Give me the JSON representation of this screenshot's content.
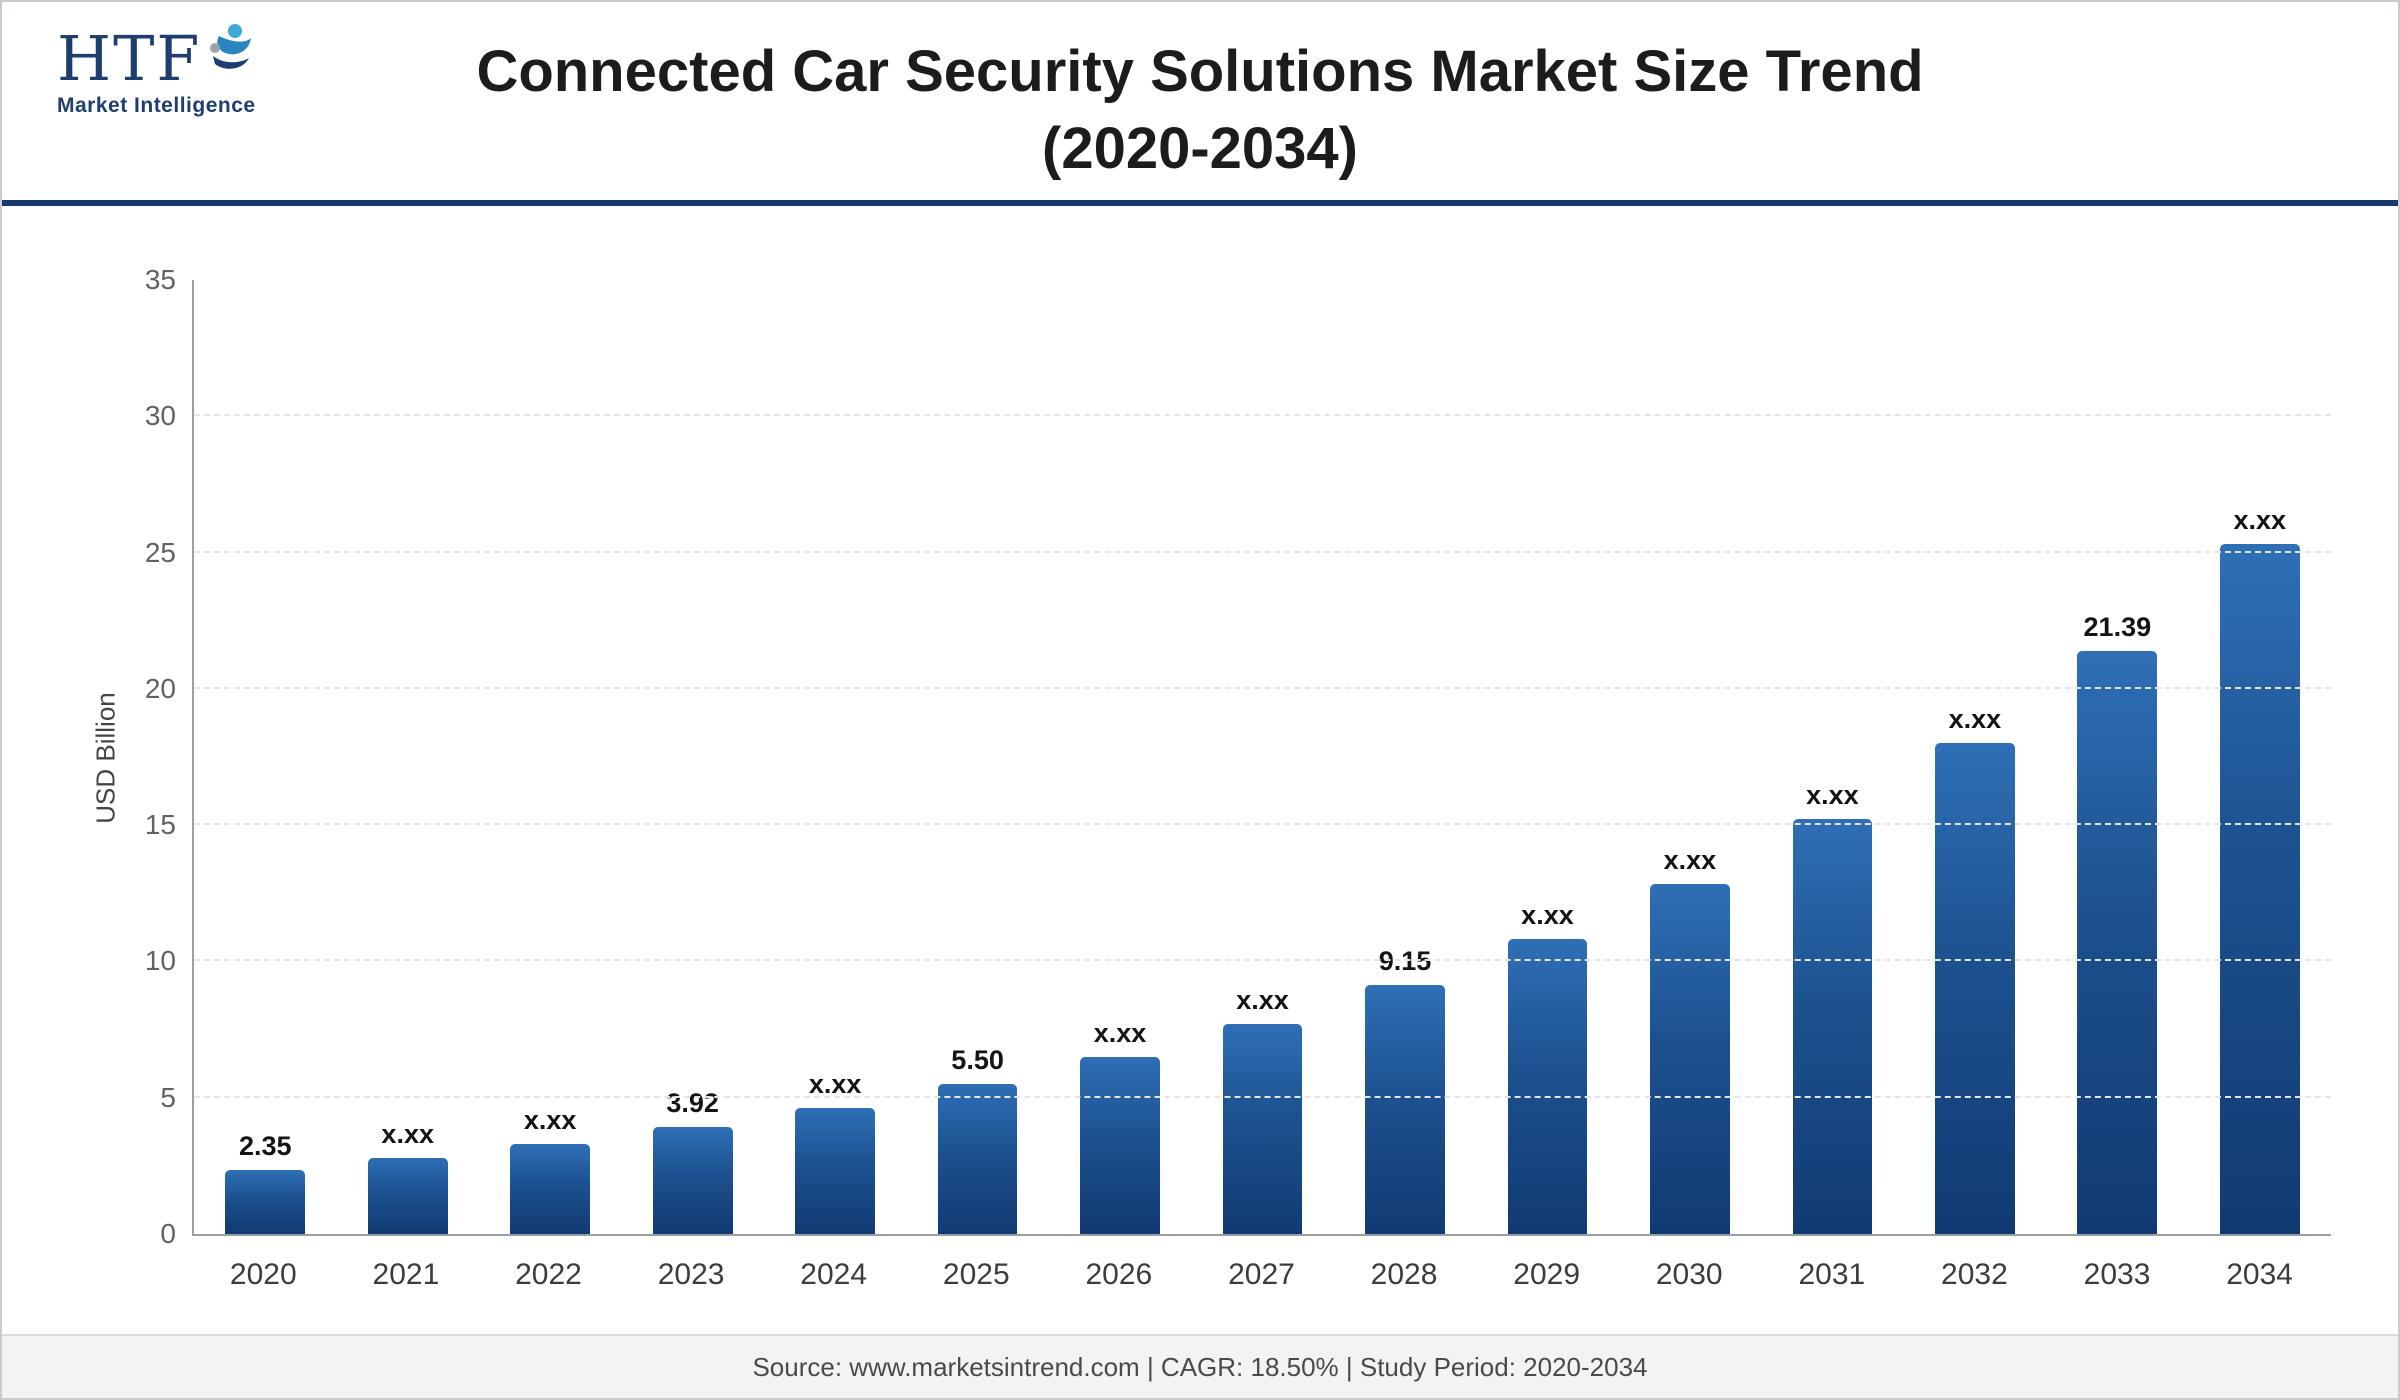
{
  "header": {
    "logo": {
      "acronym": "HTF",
      "subtitle": "Market Intelligence"
    },
    "title": "Connected Car Security Solutions Market Size Trend (2020-2034)"
  },
  "chart_data": {
    "type": "bar",
    "title": "Connected Car Security Solutions Market Size Trend (2020-2034)",
    "xlabel": "",
    "ylabel": "USD Billion",
    "ylim": [
      0,
      35
    ],
    "yticks": [
      0,
      5,
      10,
      15,
      20,
      25,
      30,
      35
    ],
    "grid": true,
    "legend": "none",
    "categories": [
      "2020",
      "2021",
      "2022",
      "2023",
      "2024",
      "2025",
      "2026",
      "2027",
      "2028",
      "2029",
      "2030",
      "2031",
      "2032",
      "2033",
      "2034"
    ],
    "values": [
      2.35,
      2.78,
      3.3,
      3.92,
      4.63,
      5.5,
      6.51,
      7.71,
      9.15,
      10.83,
      12.83,
      15.21,
      18.02,
      21.39,
      25.31
    ],
    "bar_labels": [
      "2.35",
      "x.xx",
      "x.xx",
      "3.92",
      "x.xx",
      "5.50",
      "x.xx",
      "x.xx",
      "9.15",
      "x.xx",
      "x.xx",
      "x.xx",
      "x.xx",
      "21.39",
      "x.xx"
    ],
    "bar_color_top": "#2f6fb6",
    "bar_color_bottom": "#113a72"
  },
  "footer": {
    "text": "Source: www.marketsintrend.com  |  CAGR: 18.50%  |  Study Period: 2020-2034"
  }
}
